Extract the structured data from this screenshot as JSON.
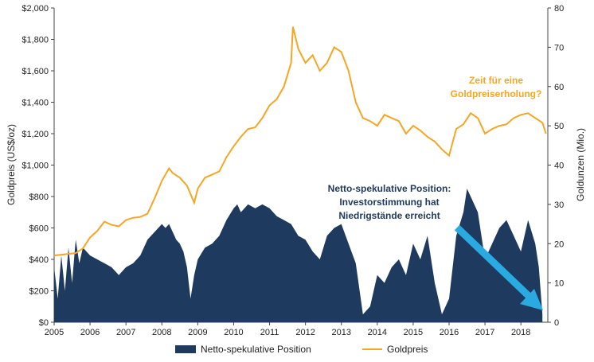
{
  "chart_data": {
    "type": "area",
    "colors": {
      "net_position": "#1f3a5f",
      "gold_price": "#f5a623",
      "arrow": "#29abe2",
      "annotation_net": "#1f3a5f",
      "annotation_gold": "#f5a623"
    },
    "x_ticks": [
      "2005",
      "2006",
      "2007",
      "2008",
      "2009",
      "2010",
      "2011",
      "2012",
      "2013",
      "2014",
      "2015",
      "2016",
      "2017",
      "2018"
    ],
    "y_left": {
      "label": "Goldpreis (US$/oz)",
      "ylim": [
        0,
        2000
      ],
      "ticks": [
        "$0",
        "$200",
        "$400",
        "$600",
        "$800",
        "$1,000",
        "$1,200",
        "$1,400",
        "$1,600",
        "$1,800",
        "$2,000"
      ],
      "tick_values": [
        0,
        200,
        400,
        600,
        800,
        1000,
        1200,
        1400,
        1600,
        1800,
        2000
      ]
    },
    "y_right": {
      "label": "Goldunzen (Mio.)",
      "ylim": [
        0,
        80
      ],
      "ticks": [
        "0",
        "10",
        "20",
        "30",
        "40",
        "50",
        "60",
        "70",
        "80"
      ],
      "tick_values": [
        0,
        10,
        20,
        30,
        40,
        50,
        60,
        70,
        80
      ]
    },
    "series": [
      {
        "name": "Netto-spekulative Position",
        "axis": "right",
        "type": "area",
        "x": [
          2005.0,
          2005.1,
          2005.2,
          2005.3,
          2005.4,
          2005.5,
          2005.6,
          2005.7,
          2005.8,
          2005.9,
          2006.0,
          2006.2,
          2006.4,
          2006.6,
          2006.8,
          2007.0,
          2007.2,
          2007.4,
          2007.6,
          2007.8,
          2008.0,
          2008.1,
          2008.2,
          2008.3,
          2008.4,
          2008.5,
          2008.6,
          2008.7,
          2008.8,
          2008.9,
          2009.0,
          2009.2,
          2009.4,
          2009.6,
          2009.8,
          2010.0,
          2010.1,
          2010.2,
          2010.4,
          2010.6,
          2010.8,
          2011.0,
          2011.2,
          2011.4,
          2011.6,
          2011.8,
          2012.0,
          2012.2,
          2012.4,
          2012.6,
          2012.8,
          2013.0,
          2013.2,
          2013.4,
          2013.6,
          2013.8,
          2014.0,
          2014.2,
          2014.4,
          2014.6,
          2014.8,
          2015.0,
          2015.2,
          2015.4,
          2015.6,
          2015.8,
          2016.0,
          2016.2,
          2016.4,
          2016.5,
          2016.6,
          2016.8,
          2017.0,
          2017.2,
          2017.4,
          2017.6,
          2017.8,
          2018.0,
          2018.2,
          2018.4,
          2018.5,
          2018.6
        ],
        "values": [
          14,
          6,
          17,
          8,
          19,
          10,
          21,
          15,
          19,
          18,
          17,
          16,
          15,
          14,
          12,
          14,
          15,
          17,
          21,
          23,
          25,
          24,
          25,
          23,
          21,
          20,
          18,
          14,
          6,
          12,
          16,
          19,
          20,
          22,
          26,
          29,
          30,
          28,
          30,
          29,
          30,
          29,
          27,
          26,
          25,
          22,
          21,
          18,
          16,
          22,
          24,
          25,
          20,
          15,
          2,
          4,
          12,
          10,
          14,
          16,
          12,
          20,
          16,
          22,
          10,
          2,
          6,
          22,
          28,
          34,
          32,
          28,
          16,
          20,
          24,
          26,
          22,
          18,
          26,
          20,
          14,
          2
        ]
      },
      {
        "name": "Goldpreis",
        "axis": "left",
        "type": "line",
        "x": [
          2005.0,
          2005.2,
          2005.4,
          2005.6,
          2005.8,
          2006.0,
          2006.2,
          2006.4,
          2006.6,
          2006.8,
          2007.0,
          2007.2,
          2007.4,
          2007.6,
          2007.8,
          2008.0,
          2008.2,
          2008.3,
          2008.5,
          2008.7,
          2008.9,
          2009.0,
          2009.2,
          2009.4,
          2009.6,
          2009.8,
          2010.0,
          2010.2,
          2010.4,
          2010.6,
          2010.8,
          2011.0,
          2011.2,
          2011.4,
          2011.6,
          2011.65,
          2011.8,
          2012.0,
          2012.2,
          2012.4,
          2012.6,
          2012.8,
          2013.0,
          2013.2,
          2013.4,
          2013.6,
          2013.8,
          2014.0,
          2014.2,
          2014.4,
          2014.6,
          2014.8,
          2015.0,
          2015.2,
          2015.4,
          2015.6,
          2015.8,
          2016.0,
          2016.2,
          2016.4,
          2016.6,
          2016.8,
          2017.0,
          2017.2,
          2017.4,
          2017.6,
          2017.8,
          2018.0,
          2018.2,
          2018.4,
          2018.6,
          2018.7
        ],
        "values": [
          425,
          430,
          435,
          440,
          470,
          540,
          580,
          640,
          620,
          610,
          650,
          665,
          670,
          690,
          790,
          900,
          980,
          950,
          920,
          870,
          760,
          850,
          920,
          940,
          960,
          1050,
          1120,
          1180,
          1230,
          1240,
          1300,
          1380,
          1420,
          1500,
          1650,
          1880,
          1740,
          1650,
          1700,
          1600,
          1650,
          1750,
          1720,
          1600,
          1400,
          1300,
          1280,
          1250,
          1320,
          1300,
          1280,
          1200,
          1250,
          1220,
          1180,
          1150,
          1100,
          1060,
          1230,
          1260,
          1330,
          1300,
          1200,
          1230,
          1250,
          1260,
          1300,
          1320,
          1330,
          1300,
          1270,
          1200
        ]
      }
    ],
    "annotations": {
      "gold": [
        "Zeit für eine",
        "Goldpreiserholung?"
      ],
      "net": [
        "Netto-spekulative Position:",
        "Investorstimmung hat",
        "Niedrigstände erreicht"
      ]
    },
    "legend": [
      "Netto-spekulative Position",
      "Goldpreis"
    ]
  }
}
